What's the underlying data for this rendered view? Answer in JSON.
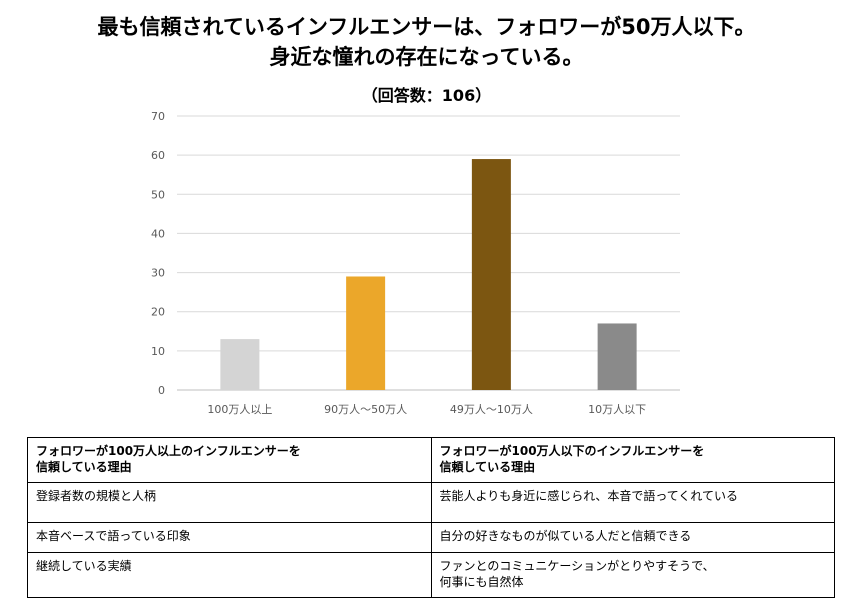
{
  "title": {
    "line1": "最も信頼されているインフルエンサーは、フォロワーが50万人以下。",
    "line2": "身近な憧れの存在になっている。"
  },
  "chart_data": {
    "type": "bar",
    "subtitle": "（回答数：106）",
    "categories": [
      "100万人以上",
      "90万人～50万人",
      "49万人～10万人",
      "10万人以下"
    ],
    "values": [
      13,
      29,
      59,
      17
    ],
    "colors": [
      "#d4d4d4",
      "#eba72a",
      "#7c5611",
      "#8a8a8a"
    ],
    "ylim": [
      0,
      70
    ],
    "yticks": [
      0,
      10,
      20,
      30,
      40,
      50,
      60,
      70
    ],
    "grid": true,
    "xlabel": "",
    "ylabel": ""
  },
  "table": {
    "headers": [
      [
        "フォロワーが100万人以上のインフルエンサーを",
        "信頼している理由"
      ],
      [
        "フォロワーが100万人以下のインフルエンサーを",
        "信頼している理由"
      ]
    ],
    "rows": [
      [
        [
          "登録者数の規模と人柄"
        ],
        [
          "芸能人よりも身近に感じられ、本音で語ってくれている"
        ]
      ],
      [
        [
          "本音ベースで語っている印象"
        ],
        [
          "自分の好きなものが似ている人だと信頼できる"
        ]
      ],
      [
        [
          "継続している実績"
        ],
        [
          "ファンとのコミュニケーションがとりやすそうで、",
          "何事にも自然体"
        ]
      ]
    ]
  }
}
